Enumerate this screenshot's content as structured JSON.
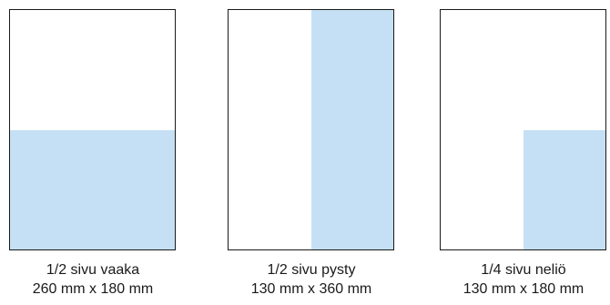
{
  "colors": {
    "ad_fill": "#c5e0f4",
    "border": "#1a1a1a"
  },
  "layouts": [
    {
      "name": "1/2 sivu vaaka",
      "size": "260 mm x 180 mm"
    },
    {
      "name": "1/2 sivu pysty",
      "size": "130 mm x 360 mm"
    },
    {
      "name": "1/4 sivu neliö",
      "size": "130 mm x 180 mm"
    }
  ]
}
